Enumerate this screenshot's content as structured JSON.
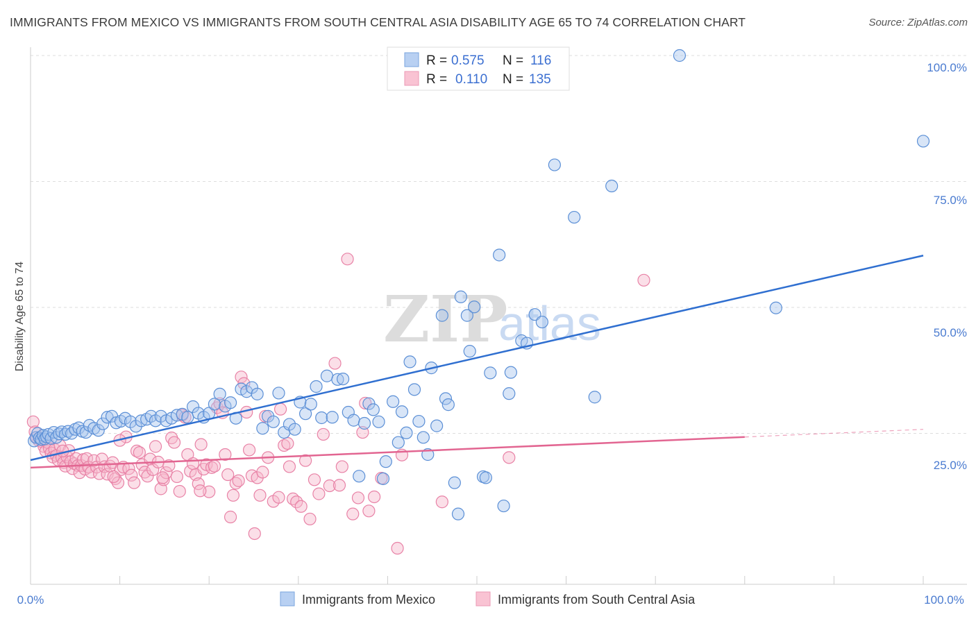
{
  "header": {
    "title": "IMMIGRANTS FROM MEXICO VS IMMIGRANTS FROM SOUTH CENTRAL ASIA DISABILITY AGE 65 TO 74 CORRELATION CHART",
    "source": "Source: ZipAtlas.com"
  },
  "watermark": {
    "zip": "ZIP",
    "atlas": "atlas"
  },
  "legend": {
    "r_label": "R =",
    "n_label": "N =",
    "rows": [
      {
        "r": "0.575",
        "n": "116"
      },
      {
        "r": "0.110",
        "n": "135"
      }
    ]
  },
  "bottom_legend": [
    "Immigrants from Mexico",
    "Immigrants from South Central Asia"
  ],
  "colors": {
    "blue_fill": "#a9c6ee",
    "blue_stroke": "#5b8fd6",
    "blue_line": "#2f6fd0",
    "pink_fill": "#f6b8cc",
    "pink_stroke": "#e882a6",
    "pink_line": "#e26591",
    "tick": "#4a7bd0",
    "grid": "#dddddd"
  },
  "chart_data": {
    "type": "scatter",
    "title": "IMMIGRANTS FROM MEXICO VS IMMIGRANTS FROM SOUTH CENTRAL ASIA DISABILITY AGE 65 TO 74 CORRELATION CHART",
    "xlabel": "",
    "ylabel": "Disability Age 65 to 74",
    "xlim": [
      0,
      100
    ],
    "ylim": [
      0,
      100
    ],
    "x_tick_labels": [
      "0.0%",
      "100.0%"
    ],
    "y_tick_labels": [
      "25.0%",
      "50.0%",
      "75.0%",
      "100.0%"
    ],
    "y_ticks": [
      25,
      50,
      75,
      100
    ],
    "grid": true,
    "legend_position": "top-center",
    "series": [
      {
        "name": "Immigrants from Mexico",
        "r": 0.575,
        "n": 116,
        "trend": {
          "x": [
            0,
            100
          ],
          "y": [
            19.7,
            60.3
          ],
          "dashed_from": null
        },
        "points": [
          [
            0.4,
            23.5
          ],
          [
            0.6,
            24.2
          ],
          [
            0.8,
            25
          ],
          [
            1.0,
            24.1
          ],
          [
            1.2,
            23.8
          ],
          [
            1.4,
            24.6
          ],
          [
            1.6,
            23.9
          ],
          [
            1.8,
            24.3
          ],
          [
            2.0,
            24.8
          ],
          [
            2.3,
            24.0
          ],
          [
            2.6,
            25.2
          ],
          [
            2.9,
            24.2
          ],
          [
            3.2,
            24.9
          ],
          [
            3.5,
            25.3
          ],
          [
            3.9,
            24.8
          ],
          [
            4.2,
            25.4
          ],
          [
            4.6,
            25.0
          ],
          [
            5.0,
            25.8
          ],
          [
            5.4,
            26.1
          ],
          [
            5.8,
            25.4
          ],
          [
            6.2,
            25.2
          ],
          [
            6.6,
            26.6
          ],
          [
            7.1,
            26.0
          ],
          [
            7.6,
            25.6
          ],
          [
            8.1,
            26.9
          ],
          [
            8.6,
            28.2
          ],
          [
            9.1,
            28.4
          ],
          [
            9.6,
            27.1
          ],
          [
            10.1,
            27.4
          ],
          [
            10.6,
            28.0
          ],
          [
            11.2,
            27.3
          ],
          [
            11.8,
            26.4
          ],
          [
            12.4,
            27.5
          ],
          [
            13.0,
            27.8
          ],
          [
            13.5,
            28.4
          ],
          [
            14.0,
            27.5
          ],
          [
            14.6,
            28.4
          ],
          [
            15.2,
            27.5
          ],
          [
            15.8,
            28.0
          ],
          [
            16.4,
            28.6
          ],
          [
            17.0,
            28.8
          ],
          [
            17.6,
            28.2
          ],
          [
            18.2,
            30.3
          ],
          [
            18.8,
            29.0
          ],
          [
            19.4,
            28.2
          ],
          [
            20.0,
            29.0
          ],
          [
            20.6,
            30.8
          ],
          [
            21.2,
            32.8
          ],
          [
            21.8,
            30.4
          ],
          [
            22.4,
            31.1
          ],
          [
            23.0,
            28.0
          ],
          [
            23.6,
            33.8
          ],
          [
            24.2,
            33.3
          ],
          [
            24.8,
            34.1
          ],
          [
            25.4,
            32.8
          ],
          [
            26.0,
            26.0
          ],
          [
            26.6,
            28.4
          ],
          [
            27.2,
            27.3
          ],
          [
            27.8,
            33.0
          ],
          [
            28.4,
            25.2
          ],
          [
            29.0,
            26.8
          ],
          [
            29.6,
            25.8
          ],
          [
            30.2,
            31.2
          ],
          [
            30.8,
            28.9
          ],
          [
            31.4,
            30.8
          ],
          [
            32.0,
            34.3
          ],
          [
            32.6,
            28.1
          ],
          [
            33.2,
            36.4
          ],
          [
            33.8,
            28.2
          ],
          [
            34.4,
            35.7
          ],
          [
            35.0,
            35.8
          ],
          [
            35.6,
            29.2
          ],
          [
            36.2,
            27.6
          ],
          [
            36.8,
            16.5
          ],
          [
            37.4,
            27.0
          ],
          [
            37.9,
            30.9
          ],
          [
            38.4,
            29.7
          ],
          [
            39.0,
            27.3
          ],
          [
            39.5,
            16.0
          ],
          [
            39.8,
            19.4
          ],
          [
            40.6,
            31.3
          ],
          [
            41.2,
            23.2
          ],
          [
            41.6,
            29.3
          ],
          [
            42.1,
            25.1
          ],
          [
            42.5,
            39.2
          ],
          [
            43.0,
            33.7
          ],
          [
            43.5,
            27.4
          ],
          [
            44.0,
            24.2
          ],
          [
            44.5,
            20.8
          ],
          [
            44.9,
            38.0
          ],
          [
            45.5,
            26.5
          ],
          [
            46.1,
            48.4
          ],
          [
            46.5,
            31.9
          ],
          [
            46.8,
            30.7
          ],
          [
            47.5,
            15.2
          ],
          [
            47.9,
            9.0
          ],
          [
            48.2,
            52.1
          ],
          [
            48.9,
            48.4
          ],
          [
            49.2,
            41.3
          ],
          [
            49.7,
            50.1
          ],
          [
            50.7,
            16.4
          ],
          [
            51.0,
            16.2
          ],
          [
            51.5,
            37.0
          ],
          [
            52.5,
            60.4
          ],
          [
            53.0,
            10.6
          ],
          [
            53.6,
            32.9
          ],
          [
            53.8,
            37.1
          ],
          [
            55.0,
            43.4
          ],
          [
            55.6,
            42.9
          ],
          [
            56.5,
            48.6
          ],
          [
            57.3,
            47.1
          ],
          [
            58.7,
            78.3
          ],
          [
            60.9,
            67.9
          ],
          [
            63.2,
            32.2
          ],
          [
            65.1,
            74.1
          ],
          [
            72.7,
            100.0
          ],
          [
            83.5,
            49.9
          ],
          [
            100.0,
            83.0
          ]
        ]
      },
      {
        "name": "Immigrants from South Central Asia",
        "r": 0.11,
        "n": 135,
        "trend": {
          "x": [
            0,
            100
          ],
          "y": [
            18.2,
            25.8
          ],
          "dashed_from": 80
        },
        "points": [
          [
            0.3,
            27.3
          ],
          [
            0.5,
            25.3
          ],
          [
            0.7,
            24.2
          ],
          [
            0.9,
            23.6
          ],
          [
            1.1,
            24.0
          ],
          [
            1.3,
            23.3
          ],
          [
            1.5,
            22.4
          ],
          [
            1.7,
            21.5
          ],
          [
            1.9,
            23.2
          ],
          [
            2.1,
            22.0
          ],
          [
            2.3,
            21.1
          ],
          [
            2.5,
            20.3
          ],
          [
            2.7,
            21.8
          ],
          [
            2.9,
            20.6
          ],
          [
            3.1,
            19.7
          ],
          [
            3.3,
            22.6
          ],
          [
            3.5,
            20.2
          ],
          [
            3.7,
            19.2
          ],
          [
            3.9,
            18.5
          ],
          [
            4.1,
            20.3
          ],
          [
            4.3,
            21.6
          ],
          [
            4.5,
            19.4
          ],
          [
            4.7,
            18.0
          ],
          [
            4.9,
            19.0
          ],
          [
            5.1,
            20.0
          ],
          [
            5.3,
            18.6
          ],
          [
            5.5,
            17.2
          ],
          [
            5.7,
            18.6
          ],
          [
            5.9,
            19.8
          ],
          [
            6.1,
            17.9
          ],
          [
            6.3,
            20.0
          ],
          [
            6.5,
            18.3
          ],
          [
            6.8,
            17.3
          ],
          [
            7.1,
            19.6
          ],
          [
            7.4,
            18.3
          ],
          [
            7.7,
            17.0
          ],
          [
            8.0,
            19.9
          ],
          [
            8.3,
            18.4
          ],
          [
            8.6,
            16.9
          ],
          [
            8.9,
            18.5
          ],
          [
            9.2,
            19.2
          ],
          [
            9.5,
            16.0
          ],
          [
            9.8,
            15.2
          ],
          [
            10.1,
            17.8
          ],
          [
            10.4,
            18.3
          ],
          [
            10.7,
            24.3
          ],
          [
            11.0,
            18.0
          ],
          [
            11.3,
            16.7
          ],
          [
            11.6,
            15.2
          ],
          [
            11.9,
            21.5
          ],
          [
            12.2,
            21.2
          ],
          [
            12.5,
            18.8
          ],
          [
            12.8,
            17.3
          ],
          [
            13.1,
            16.5
          ],
          [
            13.4,
            19.9
          ],
          [
            13.7,
            17.8
          ],
          [
            14.0,
            22.4
          ],
          [
            14.3,
            19.3
          ],
          [
            14.6,
            14.0
          ],
          [
            14.9,
            15.8
          ],
          [
            15.2,
            17.2
          ],
          [
            15.5,
            18.6
          ],
          [
            15.8,
            24.1
          ],
          [
            16.1,
            23.2
          ],
          [
            16.4,
            16.4
          ],
          [
            16.7,
            13.5
          ],
          [
            17.0,
            28.6
          ],
          [
            17.3,
            28.2
          ],
          [
            17.6,
            20.8
          ],
          [
            17.9,
            17.5
          ],
          [
            18.2,
            19.0
          ],
          [
            18.5,
            16.8
          ],
          [
            18.8,
            15.0
          ],
          [
            19.1,
            22.8
          ],
          [
            19.4,
            17.9
          ],
          [
            19.7,
            18.8
          ],
          [
            20.0,
            13.4
          ],
          [
            20.3,
            18.2
          ],
          [
            20.6,
            18.5
          ],
          [
            20.9,
            30.1
          ],
          [
            21.2,
            30.9
          ],
          [
            21.5,
            29.1
          ],
          [
            21.8,
            20.8
          ],
          [
            22.1,
            16.8
          ],
          [
            22.4,
            8.4
          ],
          [
            22.7,
            12.7
          ],
          [
            23.0,
            15.1
          ],
          [
            23.3,
            15.6
          ],
          [
            23.6,
            36.2
          ],
          [
            23.9,
            34.9
          ],
          [
            24.2,
            29.2
          ],
          [
            24.5,
            21.7
          ],
          [
            24.8,
            16.6
          ],
          [
            25.1,
            5.1
          ],
          [
            25.4,
            16.2
          ],
          [
            25.7,
            12.7
          ],
          [
            26.0,
            17.3
          ],
          [
            26.3,
            28.4
          ],
          [
            26.6,
            20.2
          ],
          [
            27.2,
            11.5
          ],
          [
            27.8,
            12.3
          ],
          [
            28.0,
            29.8
          ],
          [
            28.4,
            22.6
          ],
          [
            28.8,
            23.0
          ],
          [
            29.0,
            18.4
          ],
          [
            29.4,
            12.0
          ],
          [
            29.8,
            11.4
          ],
          [
            30.3,
            10.5
          ],
          [
            30.8,
            19.6
          ],
          [
            31.3,
            8.0
          ],
          [
            31.8,
            15.8
          ],
          [
            32.3,
            13.0
          ],
          [
            32.8,
            24.8
          ],
          [
            33.5,
            14.6
          ],
          [
            34.1,
            38.9
          ],
          [
            34.6,
            14.7
          ],
          [
            34.9,
            18.4
          ],
          [
            35.5,
            59.6
          ],
          [
            36.1,
            9.0
          ],
          [
            36.7,
            12.2
          ],
          [
            37.2,
            25.2
          ],
          [
            37.5,
            31.0
          ],
          [
            37.9,
            9.6
          ],
          [
            38.5,
            12.4
          ],
          [
            39.3,
            16.1
          ],
          [
            41.1,
            2.2
          ],
          [
            41.6,
            20.7
          ],
          [
            46.1,
            11.4
          ],
          [
            53.6,
            20.2
          ],
          [
            68.7,
            55.4
          ],
          [
            19.0,
            13.6
          ],
          [
            10.0,
            23.6
          ],
          [
            14.8,
            16.2
          ],
          [
            3.6,
            21.5
          ],
          [
            9.3,
            16.4
          ]
        ]
      }
    ]
  }
}
